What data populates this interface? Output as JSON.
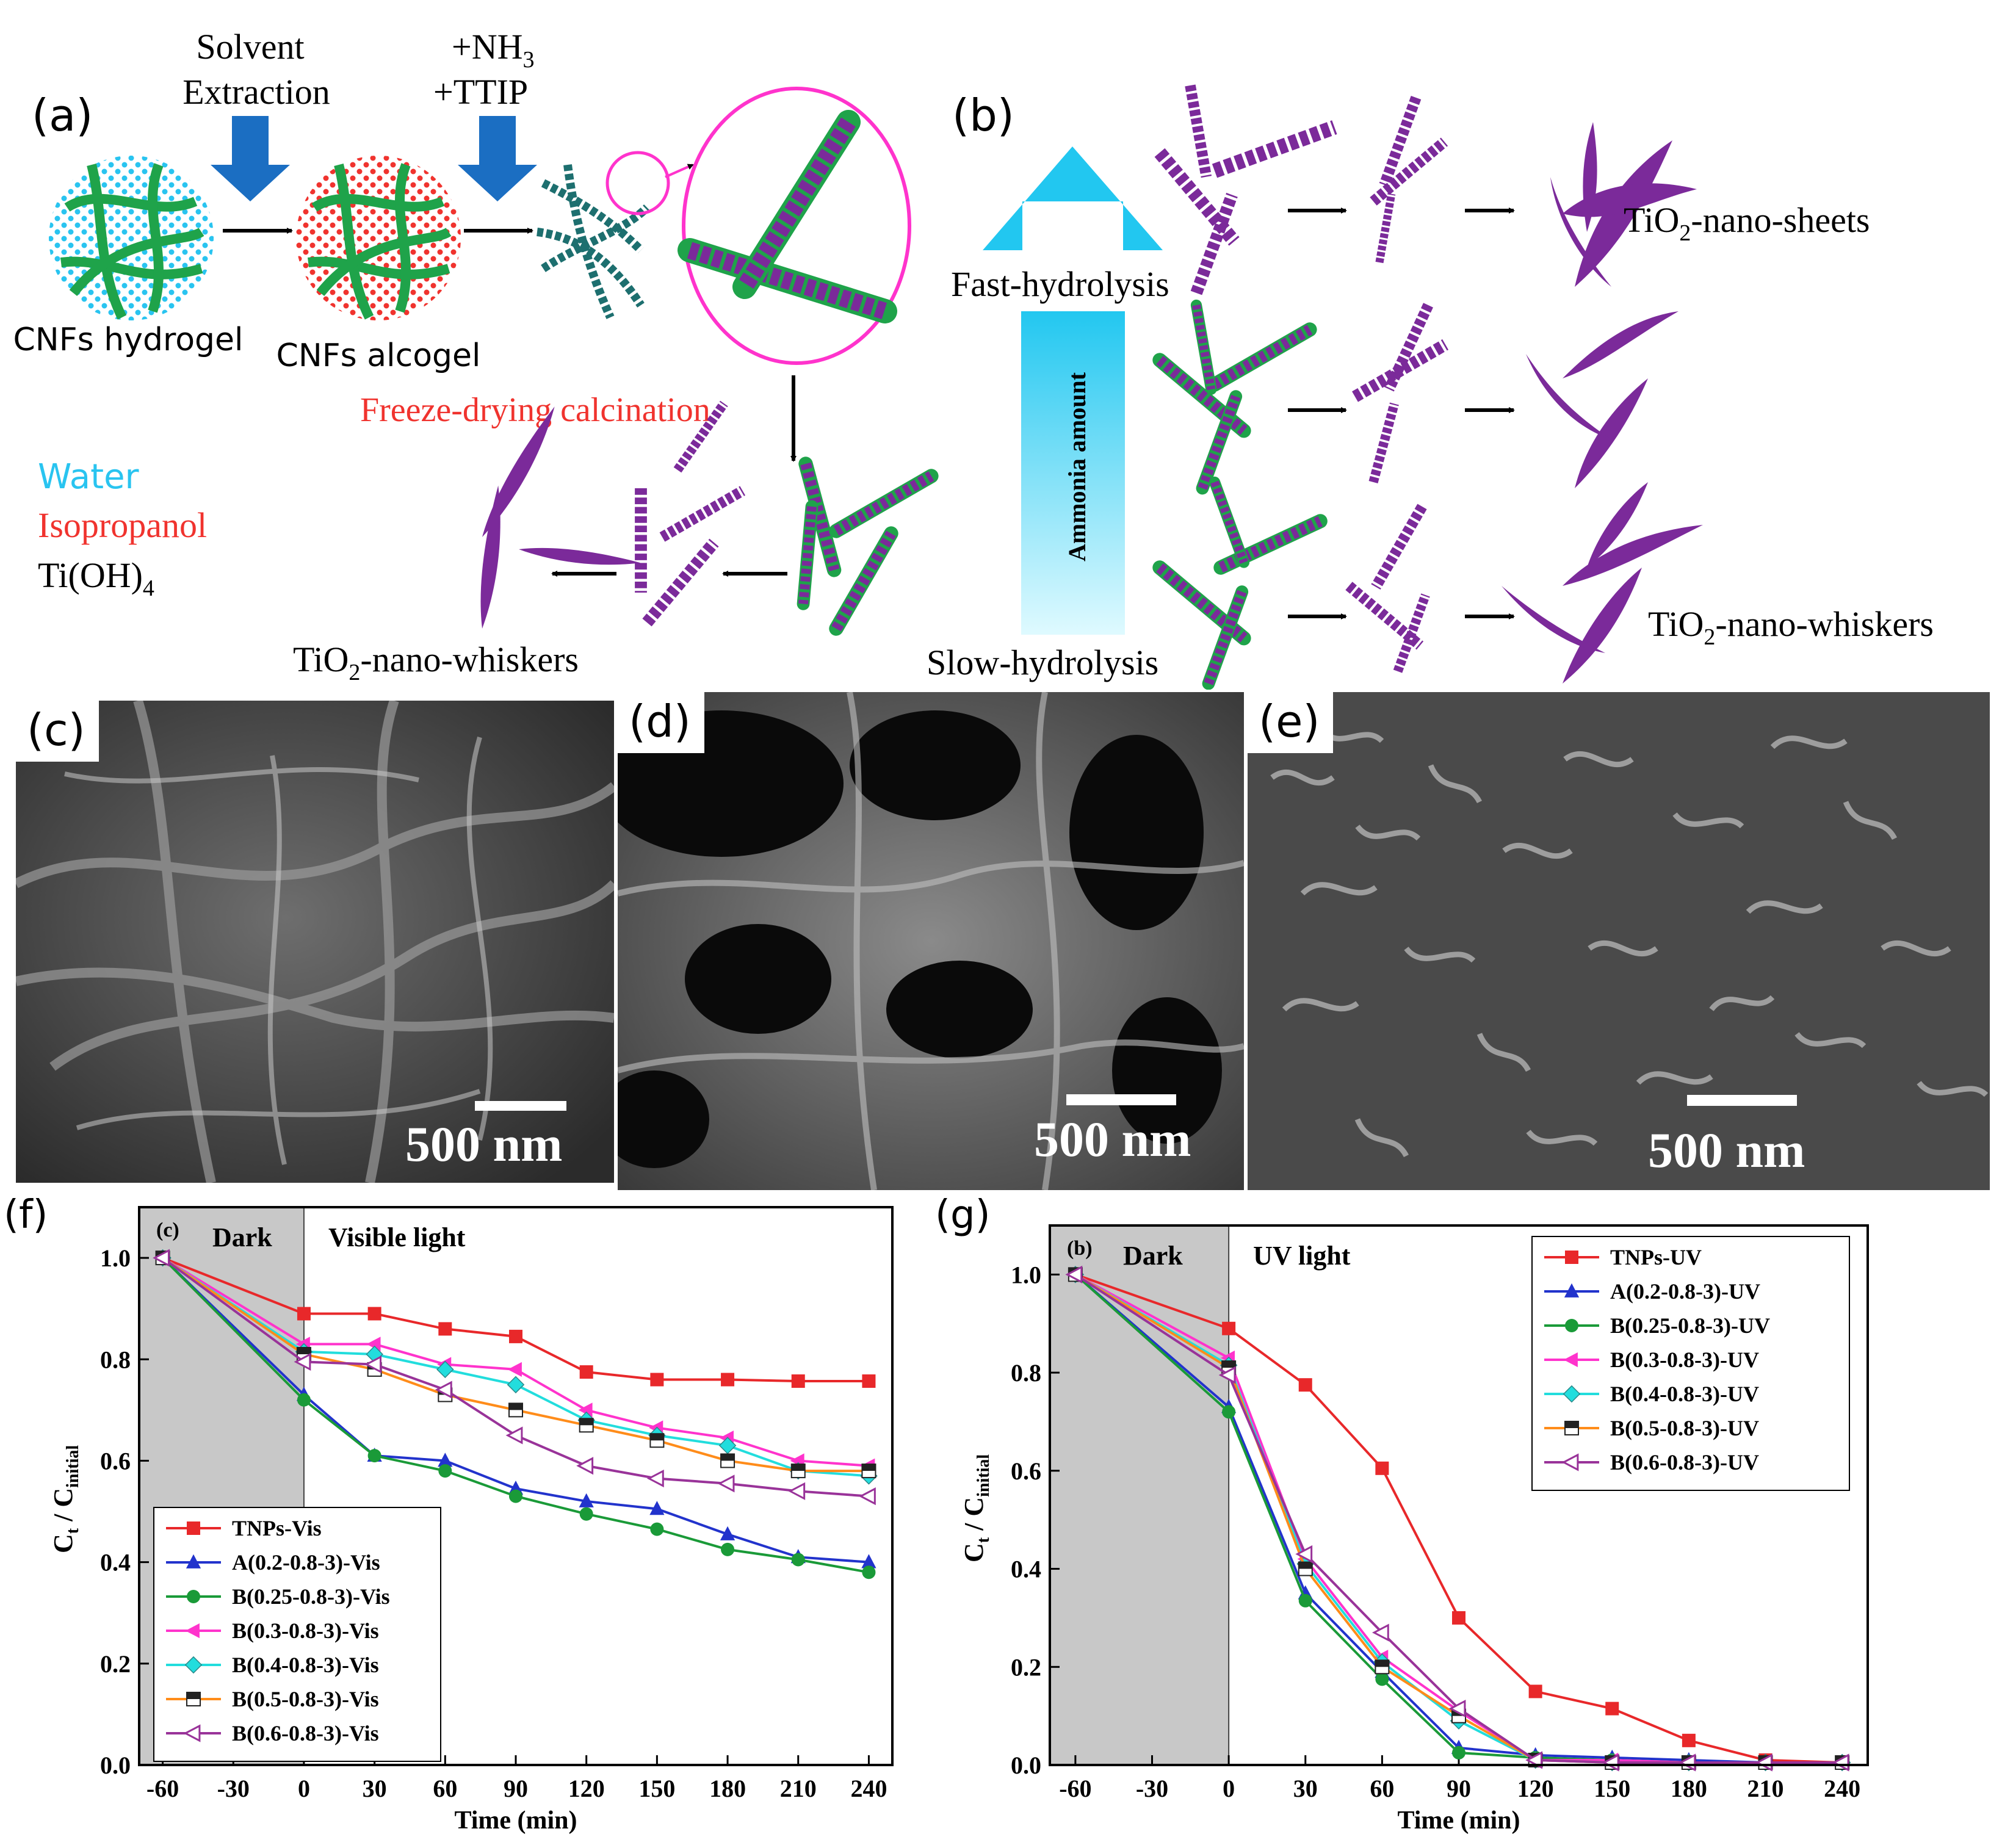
{
  "panel_a": {
    "label": "(a)",
    "step1": [
      "Solvent",
      "Extraction"
    ],
    "step2_nh3": "+NH",
    "step2_nh3_sub": "3",
    "step2_ttip": "+TTIP",
    "hydrogel": "CNFs hydrogel",
    "alcogel": "CNFs alcogel",
    "freeze": "Freeze-drying calcination",
    "legend_water": "Water",
    "legend_iso": "Isopropanol",
    "legend_tioh": "Ti(OH)",
    "legend_tioh_sub": "4",
    "whiskers": "TiO",
    "whiskers_sub": "2",
    "whiskers_rest": "-nano-whiskers",
    "colors": {
      "water": "#29c4f0",
      "isopropanol": "#f0332e",
      "fiber": "#1fa34a",
      "purple": "#7b2a9a",
      "arrow": "#1b6ec2"
    }
  },
  "panel_b": {
    "label": "(b)",
    "fast": "Fast-hydrolysis",
    "slow": "Slow-hydrolysis",
    "ammonia": "Ammonia amount",
    "sheets": "TiO",
    "sheets_sub": "2",
    "sheets_rest": "-nano-sheets",
    "whiskers": "TiO",
    "whiskers_sub": "2",
    "whiskers_rest": "-nano-whiskers"
  },
  "sem": {
    "c": {
      "label": "(c)",
      "scale": "500 nm"
    },
    "d": {
      "label": "(d)",
      "scale": "500 nm"
    },
    "e": {
      "label": "(e)",
      "scale": "500 nm"
    }
  },
  "chart_data": [
    {
      "type": "line",
      "panel_label": "(f)",
      "inner_label": "(c)",
      "region_dark": "Dark",
      "region_light": "Visible light",
      "xlabel": "Time (min)",
      "ylabel": "C",
      "ylabel_sub_t": "t",
      "ylabel_sub_i": "initial",
      "xlim": [
        -70,
        250
      ],
      "ylim": [
        0,
        1.1
      ],
      "dark_range": [
        -70,
        0
      ],
      "xticks": [
        -60,
        -30,
        0,
        30,
        60,
        90,
        120,
        150,
        180,
        210,
        240
      ],
      "xtick_labels": [
        "-60",
        "-30",
        "0",
        "30",
        "60",
        "90",
        "120",
        "150",
        "180",
        "210",
        "240"
      ],
      "yticks": [
        0.0,
        0.2,
        0.4,
        0.6,
        0.8,
        1.0
      ],
      "ytick_labels": [
        "0.0",
        "0.2",
        "0.4",
        "0.6",
        "0.8",
        "1.0"
      ],
      "legend_position": "bottom-left",
      "x": [
        -60,
        0,
        30,
        60,
        90,
        120,
        150,
        180,
        210,
        240
      ],
      "series": [
        {
          "name": "TNPs-Vis",
          "color": "#e8282a",
          "marker": "square",
          "values": [
            1.0,
            0.89,
            0.89,
            0.86,
            0.845,
            0.775,
            0.76,
            0.76,
            0.757,
            0.757
          ]
        },
        {
          "name": "A(0.2-0.8-3)-Vis",
          "color": "#2233cc",
          "marker": "triangle-up",
          "values": [
            1.0,
            0.73,
            0.61,
            0.6,
            0.545,
            0.52,
            0.505,
            0.455,
            0.41,
            0.4
          ]
        },
        {
          "name": "B(0.25-0.8-3)-Vis",
          "color": "#1a9a38",
          "marker": "circle",
          "values": [
            1.0,
            0.72,
            0.61,
            0.58,
            0.53,
            0.495,
            0.465,
            0.425,
            0.405,
            0.38
          ]
        },
        {
          "name": "B(0.3-0.8-3)-Vis",
          "color": "#ff33cc",
          "marker": "triangle-left",
          "values": [
            1.0,
            0.83,
            0.83,
            0.79,
            0.78,
            0.7,
            0.665,
            0.645,
            0.6,
            0.59
          ]
        },
        {
          "name": "B(0.4-0.8-3)-Vis",
          "color": "#22dddd",
          "marker": "diamond",
          "values": [
            1.0,
            0.815,
            0.81,
            0.78,
            0.75,
            0.68,
            0.65,
            0.63,
            0.58,
            0.57
          ]
        },
        {
          "name": "B(0.5-0.8-3)-Vis",
          "color": "#ff8c1a",
          "marker": "half-square",
          "values": [
            1.0,
            0.81,
            0.78,
            0.73,
            0.7,
            0.67,
            0.64,
            0.6,
            0.58,
            0.58
          ]
        },
        {
          "name": "B(0.6-0.8-3)-Vis",
          "color": "#993399",
          "marker": "open-triangle-left",
          "values": [
            1.0,
            0.795,
            0.79,
            0.74,
            0.65,
            0.59,
            0.565,
            0.555,
            0.54,
            0.53
          ]
        }
      ]
    },
    {
      "type": "line",
      "panel_label": "(g)",
      "inner_label": "(b)",
      "region_dark": "Dark",
      "region_light": "UV light",
      "xlabel": "Time (min)",
      "ylabel": "C",
      "ylabel_sub_t": "t",
      "ylabel_sub_i": "initial",
      "xlim": [
        -70,
        250
      ],
      "ylim": [
        0,
        1.1
      ],
      "dark_range": [
        -70,
        0
      ],
      "xticks": [
        -60,
        -30,
        0,
        30,
        60,
        90,
        120,
        150,
        180,
        210,
        240
      ],
      "xtick_labels": [
        "-60",
        "-30",
        "0",
        "30",
        "60",
        "90",
        "120",
        "150",
        "180",
        "210",
        "240"
      ],
      "yticks": [
        0.0,
        0.2,
        0.4,
        0.6,
        0.8,
        1.0
      ],
      "ytick_labels": [
        "0.0",
        "0.2",
        "0.4",
        "0.6",
        "0.8",
        "1.0"
      ],
      "legend_position": "top-right",
      "x": [
        -60,
        0,
        30,
        60,
        90,
        120,
        150,
        180,
        210,
        240
      ],
      "series": [
        {
          "name": "TNPs-UV",
          "color": "#e8282a",
          "marker": "square",
          "values": [
            1.0,
            0.89,
            0.775,
            0.605,
            0.3,
            0.15,
            0.115,
            0.05,
            0.01,
            0.005
          ]
        },
        {
          "name": "A(0.2-0.8-3)-UV",
          "color": "#2233cc",
          "marker": "triangle-up",
          "values": [
            1.0,
            0.73,
            0.35,
            0.19,
            0.035,
            0.02,
            0.015,
            0.01,
            0.005,
            0.005
          ]
        },
        {
          "name": "B(0.25-0.8-3)-UV",
          "color": "#1a9a38",
          "marker": "circle",
          "values": [
            1.0,
            0.72,
            0.335,
            0.175,
            0.025,
            0.015,
            0.01,
            0.005,
            0.005,
            0.005
          ]
        },
        {
          "name": "B(0.3-0.8-3)-UV",
          "color": "#ff33cc",
          "marker": "triangle-left",
          "values": [
            1.0,
            0.83,
            0.42,
            0.22,
            0.11,
            0.01,
            0.01,
            0.005,
            0.005,
            0.005
          ]
        },
        {
          "name": "B(0.4-0.8-3)-UV",
          "color": "#22dddd",
          "marker": "diamond",
          "values": [
            1.0,
            0.815,
            0.41,
            0.21,
            0.09,
            0.01,
            0.005,
            0.005,
            0.005,
            0.005
          ]
        },
        {
          "name": "B(0.5-0.8-3)-UV",
          "color": "#ff8c1a",
          "marker": "half-square",
          "values": [
            1.0,
            0.81,
            0.4,
            0.2,
            0.1,
            0.01,
            0.005,
            0.005,
            0.005,
            0.005
          ]
        },
        {
          "name": "B(0.6-0.8-3)-UV",
          "color": "#993399",
          "marker": "open-triangle-left",
          "values": [
            1.0,
            0.795,
            0.43,
            0.27,
            0.115,
            0.01,
            0.005,
            0.005,
            0.005,
            0.005
          ]
        }
      ]
    }
  ]
}
